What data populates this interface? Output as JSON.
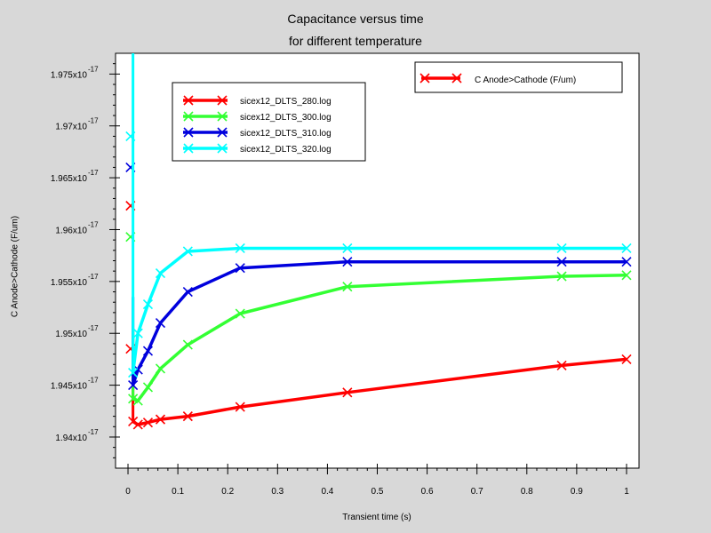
{
  "colors": {
    "background": "#d8d8d8",
    "plot_bg": "#ffffff",
    "series_280": "#ff0000",
    "series_300": "#33ff33",
    "series_310": "#0000dd",
    "series_320": "#00ffff"
  },
  "chart_data": {
    "type": "line",
    "title_line1": "Capacitance versus time",
    "title_line2": "for different temperature",
    "xlabel": "Transient time (s)",
    "ylabel": "C Anode>Cathode (F/um)",
    "xlim": [
      -0.025,
      1.025
    ],
    "ylim": [
      1.937e-17,
      1.977e-17
    ],
    "x_ticks": [
      0,
      0.1,
      0.2,
      0.3,
      0.4,
      0.5,
      0.6,
      0.7,
      0.8,
      0.9,
      1
    ],
    "x_tick_labels": [
      "0",
      "0.1",
      "0.2",
      "0.3",
      "0.4",
      "0.5",
      "0.6",
      "0.7",
      "0.8",
      "0.9",
      "1"
    ],
    "y_ticks": [
      1.94e-17,
      1.945e-17,
      1.95e-17,
      1.955e-17,
      1.96e-17,
      1.965e-17,
      1.97e-17,
      1.975e-17
    ],
    "y_tick_mantissa": [
      "1.94x10",
      "1.945x10",
      "1.95x10",
      "1.955x10",
      "1.96x10",
      "1.965x10",
      "1.97x10",
      "1.975x10"
    ],
    "y_tick_exponent": "-17",
    "legend_main": {
      "label": "C Anode>Cathode (F/um)",
      "position": "top-right"
    },
    "legend_series_position": "top-left",
    "series": [
      {
        "name": "sicex12_DLTS_280.log",
        "color": "#ff0000",
        "x": [
          0.005,
          0.0075,
          0.01,
          0.02,
          0.04,
          0.065,
          0.12,
          0.225,
          0.44,
          0.87,
          1.0
        ],
        "y": [
          1.9623e-17,
          1.9485e-17,
          1.9415e-17,
          1.9412e-17,
          1.9414e-17,
          1.9417e-17,
          1.942e-17,
          1.9429e-17,
          1.9443e-17,
          1.9469e-17,
          1.9475e-17
        ],
        "outlier_markers": [
          {
            "x": 0.005,
            "y": 1.9623e-17
          },
          {
            "x": 0.005,
            "y": 1.9485e-17
          }
        ]
      },
      {
        "name": "sicex12_DLTS_300.log",
        "color": "#33ff33",
        "x": [
          0.005,
          0.0075,
          0.01,
          0.02,
          0.04,
          0.065,
          0.12,
          0.225,
          0.44,
          0.87,
          1.0
        ],
        "y": [
          1.9593e-17,
          1.9503e-17,
          1.9437e-17,
          1.9435e-17,
          1.9448e-17,
          1.9466e-17,
          1.9489e-17,
          1.9519e-17,
          1.9545e-17,
          1.9555e-17,
          1.9556e-17
        ],
        "outlier_markers": [
          {
            "x": 0.005,
            "y": 1.9593e-17
          }
        ]
      },
      {
        "name": "sicex12_DLTS_310.log",
        "color": "#0000dd",
        "x": [
          0.005,
          0.0075,
          0.01,
          0.02,
          0.04,
          0.065,
          0.12,
          0.225,
          0.44,
          0.87,
          1.0
        ],
        "y": [
          1.966e-17,
          1.9535e-17,
          1.945e-17,
          1.9465e-17,
          1.9483e-17,
          1.951e-17,
          1.954e-17,
          1.9563e-17,
          1.9569e-17,
          1.9569e-17,
          1.9569e-17
        ],
        "outlier_markers": [
          {
            "x": 0.005,
            "y": 1.966e-17
          }
        ]
      },
      {
        "name": "sicex12_DLTS_320.log",
        "color": "#00ffff",
        "x": [
          0.005,
          0.0075,
          0.01,
          0.02,
          0.04,
          0.065,
          0.12,
          0.225,
          0.44,
          0.87,
          1.0
        ],
        "y": [
          1.969e-17,
          1.9561e-17,
          1.9462e-17,
          1.95e-17,
          1.9528e-17,
          1.9558e-17,
          1.9579e-17,
          1.9582e-17,
          1.9582e-17,
          1.9582e-17,
          1.9582e-17
        ],
        "spike_to_top": true,
        "outlier_markers": [
          {
            "x": 0.005,
            "y": 1.969e-17
          }
        ]
      }
    ]
  }
}
